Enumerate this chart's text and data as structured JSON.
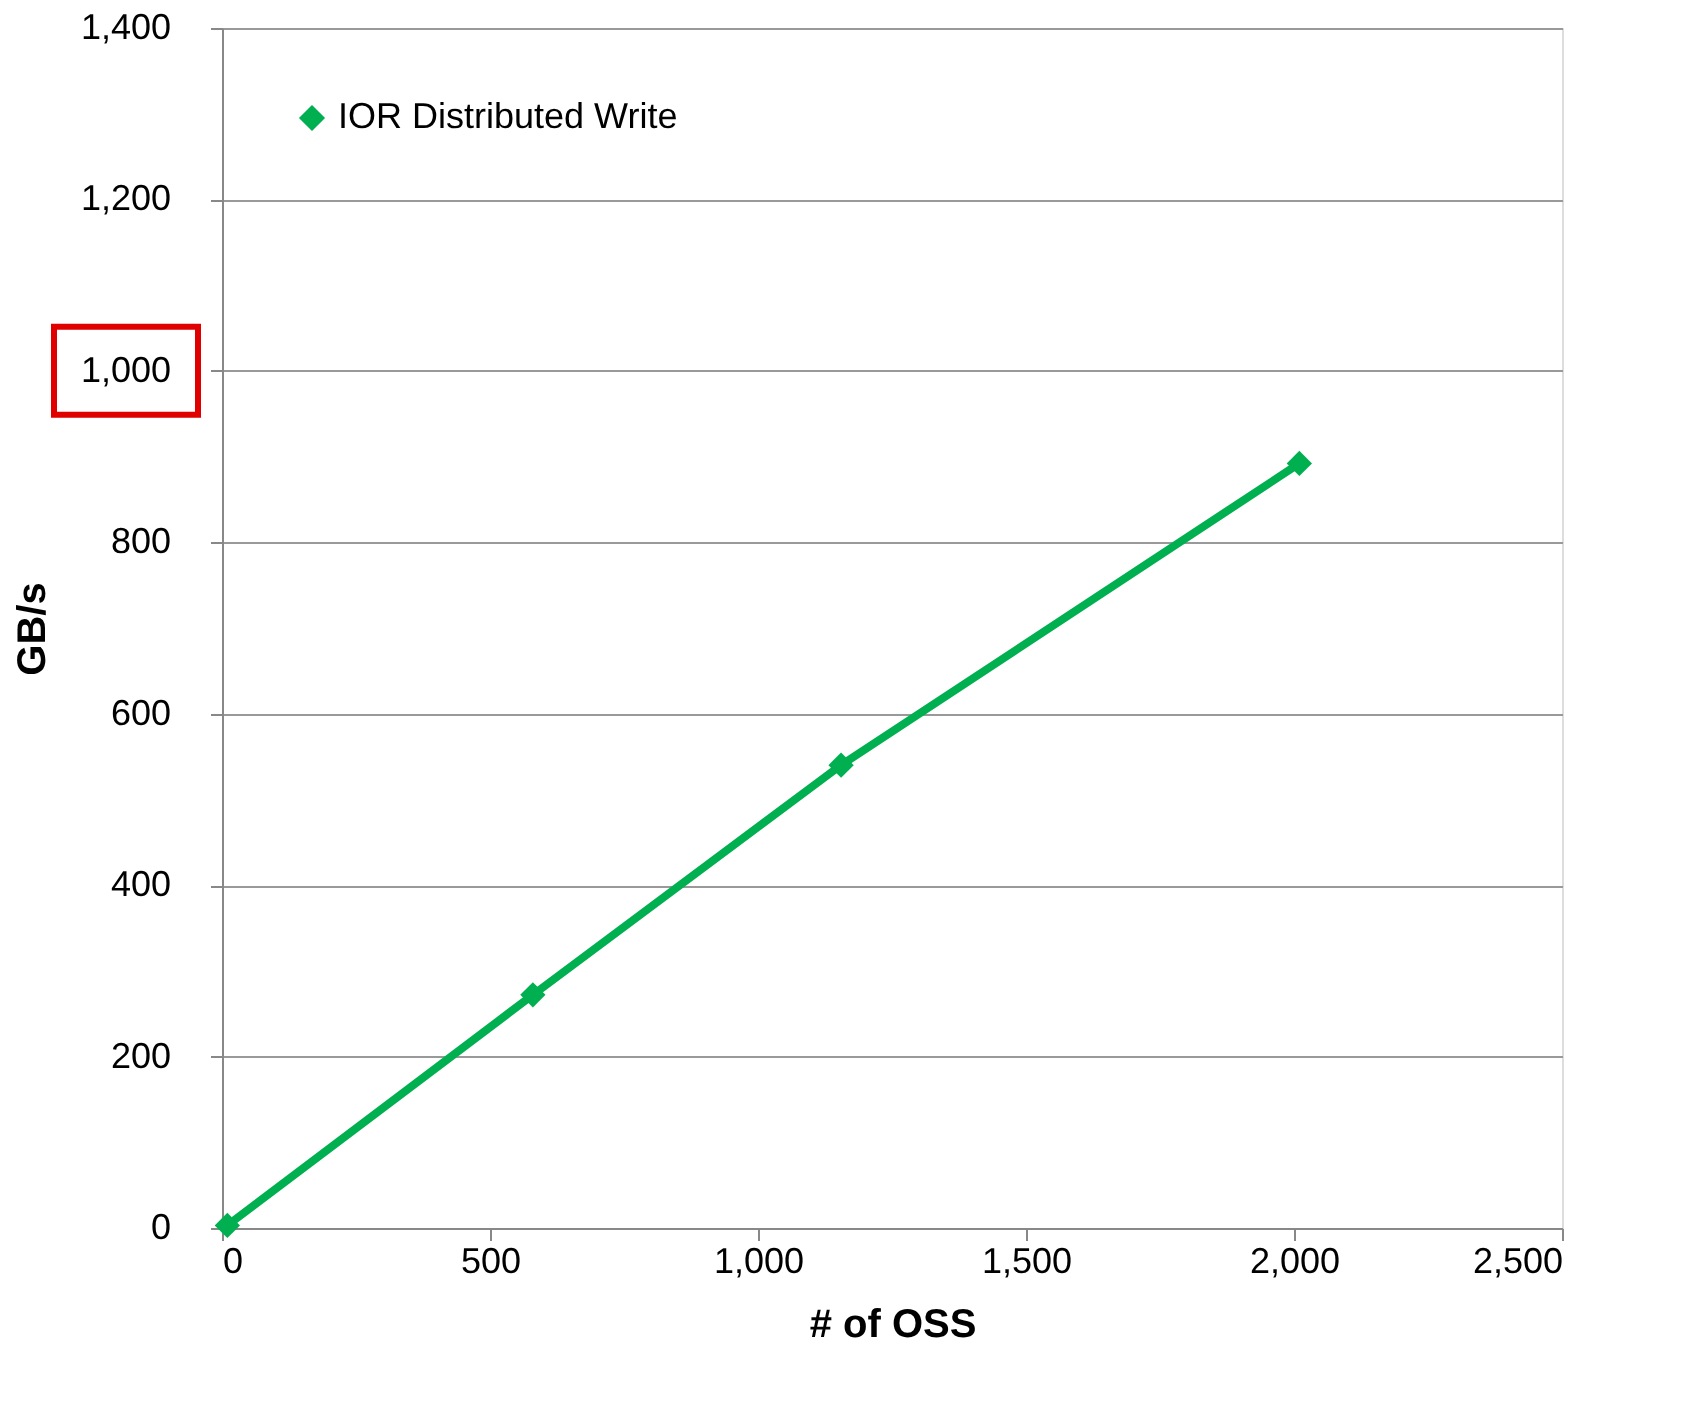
{
  "chart_data": {
    "type": "line",
    "xlabel": "# of OSS",
    "ylabel": "GB/s",
    "x": [
      10,
      580,
      1155,
      2010
    ],
    "series": [
      {
        "name": "IOR Distributed Write",
        "color": "#00b050",
        "values": [
          3,
          272,
          540,
          892
        ]
      }
    ],
    "xlim": [
      0,
      2500
    ],
    "xticks": [
      {
        "value": 0,
        "label": "0"
      },
      {
        "value": 500,
        "label": "500"
      },
      {
        "value": 1000,
        "label": "1,000"
      },
      {
        "value": 1500,
        "label": "1,500"
      },
      {
        "value": 2000,
        "label": "2,000"
      },
      {
        "value": 2500,
        "label": "2,500"
      }
    ],
    "ylim": [
      0,
      1400
    ],
    "yticks": [
      {
        "value": 0,
        "label": "0"
      },
      {
        "value": 200,
        "label": "200"
      },
      {
        "value": 400,
        "label": "400"
      },
      {
        "value": 600,
        "label": "600"
      },
      {
        "value": 800,
        "label": "800"
      },
      {
        "value": 1000,
        "label": "1,000"
      },
      {
        "value": 1200,
        "label": "1,200"
      },
      {
        "value": 1400,
        "label": "1,400"
      }
    ],
    "grid": "y",
    "legend": "top left",
    "marker": "diamond",
    "line_style": "solid"
  }
}
